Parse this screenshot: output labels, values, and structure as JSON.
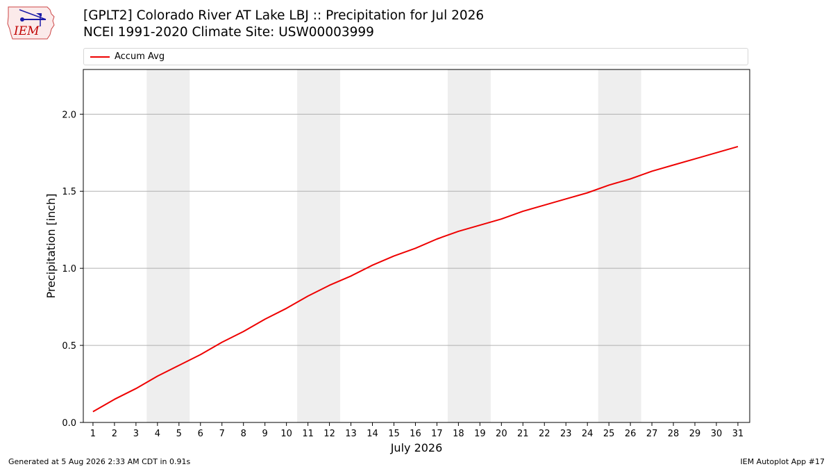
{
  "header": {
    "title_line1": "[GPLT2] Colorado River  AT Lake LBJ :: Precipitation for Jul 2026",
    "title_line2": "NCEI 1991-2020 Climate Site: USW00003999"
  },
  "logo": {
    "text": "IEM",
    "icon": "iem-logo"
  },
  "footer": {
    "left": "Generated at 5 Aug 2026 2:33 AM CDT in 0.91s",
    "right": "IEM Autoplot App #17"
  },
  "colors": {
    "series": "#ee0000",
    "weekend_band": "#eeeeee",
    "grid": "#b0b0b0"
  },
  "chart_data": {
    "type": "line",
    "xlabel": "July 2026",
    "ylabel": "Precipitation [inch]",
    "x": [
      1,
      2,
      3,
      4,
      5,
      6,
      7,
      8,
      9,
      10,
      11,
      12,
      13,
      14,
      15,
      16,
      17,
      18,
      19,
      20,
      21,
      22,
      23,
      24,
      25,
      26,
      27,
      28,
      29,
      30,
      31
    ],
    "xtick_labels": [
      "1",
      "2",
      "3",
      "4",
      "5",
      "6",
      "7",
      "8",
      "9",
      "10",
      "11",
      "12",
      "13",
      "14",
      "15",
      "16",
      "17",
      "18",
      "19",
      "20",
      "21",
      "22",
      "23",
      "24",
      "25",
      "26",
      "27",
      "28",
      "29",
      "30",
      "31"
    ],
    "yticks": [
      0.0,
      0.5,
      1.0,
      1.5,
      2.0
    ],
    "ytick_labels": [
      "0.0",
      "0.5",
      "1.0",
      "1.5",
      "2.0"
    ],
    "ylim": [
      0,
      2.29
    ],
    "xlim": [
      0.55,
      31.55
    ],
    "grid": "horizontal",
    "legend_position": "top",
    "weekend_bands": [
      [
        4,
        5
      ],
      [
        11,
        12
      ],
      [
        18,
        19
      ],
      [
        25,
        26
      ]
    ],
    "series": [
      {
        "name": "Accum Avg",
        "color": "#ee0000",
        "values": [
          0.07,
          0.15,
          0.22,
          0.3,
          0.37,
          0.44,
          0.52,
          0.59,
          0.67,
          0.74,
          0.82,
          0.89,
          0.95,
          1.02,
          1.08,
          1.13,
          1.19,
          1.24,
          1.28,
          1.32,
          1.37,
          1.41,
          1.45,
          1.49,
          1.54,
          1.58,
          1.63,
          1.67,
          1.71,
          1.75,
          1.79
        ]
      }
    ]
  }
}
